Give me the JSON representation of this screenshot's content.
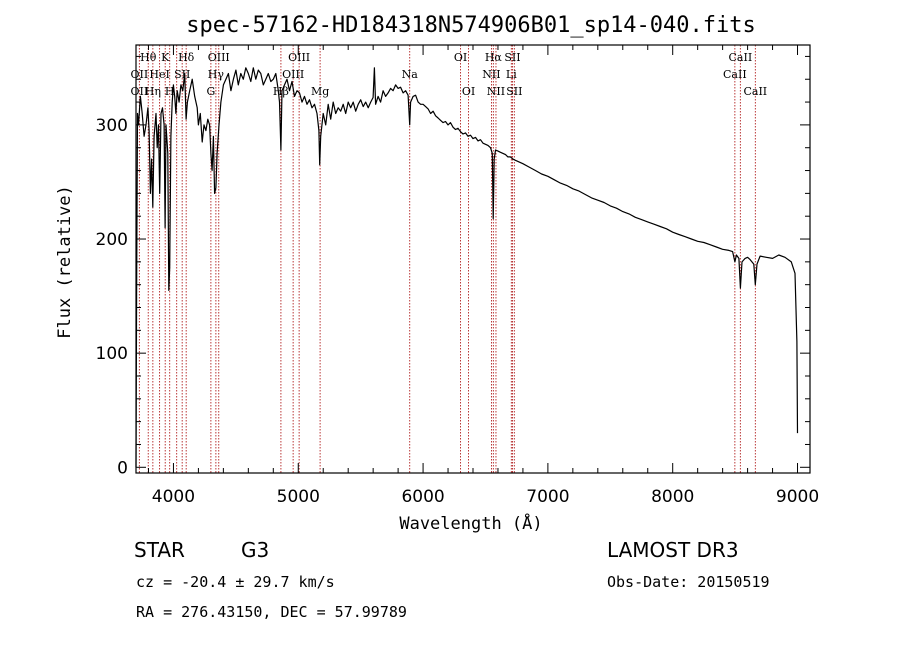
{
  "chart_data": {
    "type": "line",
    "title": "spec-57162-HD184318N574906B01_sp14-040.fits",
    "xlabel": "Wavelength (Å)",
    "ylabel": "Flux (relative)",
    "xlim": [
      3700,
      9100
    ],
    "ylim": [
      -5,
      370
    ],
    "x_ticks": [
      4000,
      5000,
      6000,
      7000,
      8000,
      9000
    ],
    "y_ticks": [
      0,
      100,
      200,
      300
    ],
    "series": [
      {
        "name": "spectrum",
        "points": [
          [
            3700,
            0
          ],
          [
            3705,
            150
          ],
          [
            3712,
            310
          ],
          [
            3720,
            300
          ],
          [
            3735,
            325
          ],
          [
            3750,
            310
          ],
          [
            3765,
            290
          ],
          [
            3780,
            300
          ],
          [
            3795,
            315
          ],
          [
            3805,
            295
          ],
          [
            3815,
            240
          ],
          [
            3825,
            270
          ],
          [
            3835,
            228
          ],
          [
            3845,
            290
          ],
          [
            3860,
            310
          ],
          [
            3870,
            280
          ],
          [
            3880,
            300
          ],
          [
            3890,
            240
          ],
          [
            3900,
            310
          ],
          [
            3912,
            315
          ],
          [
            3925,
            300
          ],
          [
            3933,
            210
          ],
          [
            3940,
            300
          ],
          [
            3955,
            275
          ],
          [
            3963,
            155
          ],
          [
            3970,
            175
          ],
          [
            3980,
            290
          ],
          [
            3990,
            320
          ],
          [
            4000,
            335
          ],
          [
            4010,
            325
          ],
          [
            4020,
            310
          ],
          [
            4030,
            330
          ],
          [
            4045,
            320
          ],
          [
            4060,
            335
          ],
          [
            4075,
            330
          ],
          [
            4090,
            345
          ],
          [
            4101,
            305
          ],
          [
            4112,
            320
          ],
          [
            4130,
            330
          ],
          [
            4150,
            340
          ],
          [
            4170,
            325
          ],
          [
            4190,
            315
          ],
          [
            4200,
            300
          ],
          [
            4215,
            310
          ],
          [
            4230,
            285
          ],
          [
            4245,
            300
          ],
          [
            4260,
            295
          ],
          [
            4275,
            305
          ],
          [
            4290,
            300
          ],
          [
            4300,
            275
          ],
          [
            4310,
            260
          ],
          [
            4320,
            290
          ],
          [
            4330,
            240
          ],
          [
            4340,
            245
          ],
          [
            4350,
            275
          ],
          [
            4365,
            300
          ],
          [
            4380,
            320
          ],
          [
            4400,
            335
          ],
          [
            4420,
            340
          ],
          [
            4440,
            345
          ],
          [
            4460,
            330
          ],
          [
            4480,
            340
          ],
          [
            4500,
            348
          ],
          [
            4520,
            335
          ],
          [
            4540,
            345
          ],
          [
            4560,
            340
          ],
          [
            4580,
            350
          ],
          [
            4600,
            345
          ],
          [
            4620,
            338
          ],
          [
            4640,
            350
          ],
          [
            4660,
            340
          ],
          [
            4680,
            348
          ],
          [
            4700,
            345
          ],
          [
            4720,
            335
          ],
          [
            4740,
            340
          ],
          [
            4760,
            345
          ],
          [
            4780,
            338
          ],
          [
            4800,
            340
          ],
          [
            4820,
            345
          ],
          [
            4840,
            330
          ],
          [
            4850,
            320
          ],
          [
            4861,
            278
          ],
          [
            4870,
            330
          ],
          [
            4890,
            335
          ],
          [
            4910,
            340
          ],
          [
            4930,
            330
          ],
          [
            4950,
            338
          ],
          [
            4970,
            325
          ],
          [
            4990,
            330
          ],
          [
            5010,
            328
          ],
          [
            5030,
            320
          ],
          [
            5050,
            325
          ],
          [
            5070,
            318
          ],
          [
            5090,
            322
          ],
          [
            5110,
            315
          ],
          [
            5130,
            318
          ],
          [
            5150,
            310
          ],
          [
            5165,
            295
          ],
          [
            5172,
            265
          ],
          [
            5180,
            290
          ],
          [
            5200,
            310
          ],
          [
            5220,
            300
          ],
          [
            5240,
            318
          ],
          [
            5260,
            305
          ],
          [
            5280,
            320
          ],
          [
            5300,
            310
          ],
          [
            5320,
            315
          ],
          [
            5340,
            312
          ],
          [
            5360,
            318
          ],
          [
            5380,
            310
          ],
          [
            5400,
            320
          ],
          [
            5420,
            315
          ],
          [
            5440,
            320
          ],
          [
            5460,
            312
          ],
          [
            5480,
            318
          ],
          [
            5500,
            322
          ],
          [
            5520,
            316
          ],
          [
            5540,
            320
          ],
          [
            5560,
            315
          ],
          [
            5580,
            320
          ],
          [
            5600,
            324
          ],
          [
            5610,
            350
          ],
          [
            5620,
            318
          ],
          [
            5640,
            325
          ],
          [
            5660,
            320
          ],
          [
            5680,
            330
          ],
          [
            5700,
            325
          ],
          [
            5720,
            328
          ],
          [
            5740,
            332
          ],
          [
            5760,
            330
          ],
          [
            5780,
            335
          ],
          [
            5800,
            332
          ],
          [
            5820,
            333
          ],
          [
            5840,
            328
          ],
          [
            5860,
            330
          ],
          [
            5880,
            326
          ],
          [
            5893,
            300
          ],
          [
            5900,
            320
          ],
          [
            5920,
            325
          ],
          [
            5940,
            326
          ],
          [
            5960,
            320
          ],
          [
            5980,
            318
          ],
          [
            6000,
            318
          ],
          [
            6020,
            316
          ],
          [
            6040,
            314
          ],
          [
            6060,
            310
          ],
          [
            6080,
            312
          ],
          [
            6100,
            308
          ],
          [
            6120,
            306
          ],
          [
            6140,
            304
          ],
          [
            6160,
            302
          ],
          [
            6180,
            303
          ],
          [
            6200,
            300
          ],
          [
            6220,
            302
          ],
          [
            6240,
            298
          ],
          [
            6260,
            296
          ],
          [
            6280,
            297
          ],
          [
            6300,
            294
          ],
          [
            6320,
            292
          ],
          [
            6340,
            293
          ],
          [
            6360,
            290
          ],
          [
            6380,
            291
          ],
          [
            6400,
            288
          ],
          [
            6420,
            289
          ],
          [
            6440,
            286
          ],
          [
            6460,
            287
          ],
          [
            6480,
            284
          ],
          [
            6500,
            283
          ],
          [
            6520,
            282
          ],
          [
            6540,
            280
          ],
          [
            6555,
            275
          ],
          [
            6562,
            218
          ],
          [
            6570,
            270
          ],
          [
            6580,
            278
          ],
          [
            6600,
            277
          ],
          [
            6620,
            276
          ],
          [
            6640,
            275
          ],
          [
            6660,
            274
          ],
          [
            6680,
            272
          ],
          [
            6700,
            272
          ],
          [
            6720,
            270
          ],
          [
            6740,
            269
          ],
          [
            6760,
            268
          ],
          [
            6800,
            266
          ],
          [
            6850,
            263
          ],
          [
            6900,
            260
          ],
          [
            6950,
            257
          ],
          [
            7000,
            255
          ],
          [
            7050,
            252
          ],
          [
            7100,
            249
          ],
          [
            7150,
            247
          ],
          [
            7200,
            244
          ],
          [
            7250,
            242
          ],
          [
            7300,
            239
          ],
          [
            7350,
            236
          ],
          [
            7400,
            234
          ],
          [
            7450,
            232
          ],
          [
            7500,
            229
          ],
          [
            7550,
            227
          ],
          [
            7600,
            224
          ],
          [
            7650,
            222
          ],
          [
            7700,
            219
          ],
          [
            7750,
            217
          ],
          [
            7800,
            215
          ],
          [
            7850,
            213
          ],
          [
            7900,
            211
          ],
          [
            7950,
            209
          ],
          [
            8000,
            206
          ],
          [
            8050,
            204
          ],
          [
            8100,
            202
          ],
          [
            8150,
            200
          ],
          [
            8200,
            198
          ],
          [
            8250,
            197
          ],
          [
            8300,
            195
          ],
          [
            8350,
            193
          ],
          [
            8400,
            191
          ],
          [
            8450,
            190
          ],
          [
            8480,
            189
          ],
          [
            8498,
            180
          ],
          [
            8510,
            186
          ],
          [
            8530,
            183
          ],
          [
            8542,
            157
          ],
          [
            8555,
            180
          ],
          [
            8580,
            183
          ],
          [
            8600,
            184
          ],
          [
            8620,
            182
          ],
          [
            8650,
            178
          ],
          [
            8662,
            160
          ],
          [
            8675,
            178
          ],
          [
            8700,
            185
          ],
          [
            8750,
            184
          ],
          [
            8800,
            183
          ],
          [
            8850,
            186
          ],
          [
            8900,
            184
          ],
          [
            8950,
            180
          ],
          [
            8980,
            170
          ],
          [
            8995,
            110
          ],
          [
            9000,
            30
          ]
        ]
      }
    ],
    "line_markers": [
      3727,
      3798,
      3835,
      3889,
      3934,
      3970,
      4026,
      4070,
      4102,
      4300,
      4340,
      4363,
      4861,
      4959,
      5007,
      5175,
      5893,
      6300,
      6364,
      6548,
      6563,
      6584,
      6707,
      6716,
      6731,
      8498,
      8542,
      8662
    ],
    "line_labels": [
      {
        "text": "Hθ",
        "x": 3798,
        "row": 0
      },
      {
        "text": "K",
        "x": 3934,
        "row": 0
      },
      {
        "text": "Hδ",
        "x": 4102,
        "row": 0
      },
      {
        "text": "OIII",
        "x": 4363,
        "row": 0
      },
      {
        "text": "OIII",
        "x": 5007,
        "row": 0
      },
      {
        "text": "OI",
        "x": 6300,
        "row": 0
      },
      {
        "text": "Hα",
        "x": 6563,
        "row": 0
      },
      {
        "text": "SII",
        "x": 6716,
        "row": 0
      },
      {
        "text": "CaII",
        "x": 8542,
        "row": 0
      },
      {
        "text": "OII",
        "x": 3727,
        "row": 1
      },
      {
        "text": "HeI",
        "x": 3889,
        "row": 1
      },
      {
        "text": "SII",
        "x": 4070,
        "row": 1
      },
      {
        "text": "Hγ",
        "x": 4340,
        "row": 1
      },
      {
        "text": "OIII",
        "x": 4959,
        "row": 1
      },
      {
        "text": "Na",
        "x": 5893,
        "row": 1
      },
      {
        "text": "NII",
        "x": 6548,
        "row": 1
      },
      {
        "text": "Li",
        "x": 6707,
        "row": 1
      },
      {
        "text": "CaII",
        "x": 8498,
        "row": 1
      },
      {
        "text": "OII",
        "x": 3727,
        "row": 2
      },
      {
        "text": "Hη",
        "x": 3835,
        "row": 2
      },
      {
        "text": "H",
        "x": 3970,
        "row": 2
      },
      {
        "text": "G",
        "x": 4300,
        "row": 2
      },
      {
        "text": "Hβ",
        "x": 4861,
        "row": 2
      },
      {
        "text": "Mg",
        "x": 5175,
        "row": 2
      },
      {
        "text": "OI",
        "x": 6364,
        "row": 2
      },
      {
        "text": "NII",
        "x": 6584,
        "row": 2
      },
      {
        "text": "SII",
        "x": 6731,
        "row": 2
      },
      {
        "text": "CaII",
        "x": 8662,
        "row": 2
      }
    ]
  },
  "info": {
    "class_type": "STAR",
    "subclass": "G3",
    "survey": "LAMOST DR3",
    "redshift": "cz = -20.4 ± 29.7 km/s",
    "obs_date": "Obs-Date: 20150519",
    "coords": "RA = 276.43150, DEC =  57.99789"
  },
  "colors": {
    "marker": "#b22222",
    "spectrum": "#000000",
    "axis": "#000000"
  }
}
